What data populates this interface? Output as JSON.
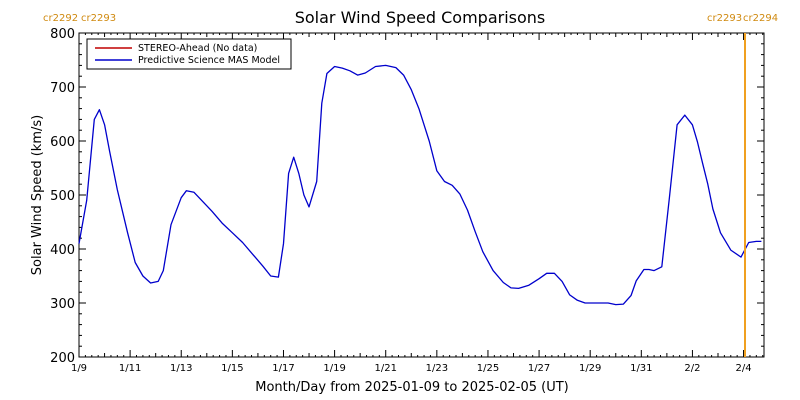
{
  "chart_data": {
    "type": "line",
    "title": "Solar Wind Speed Comparisons",
    "xlabel": "Month/Day from 2025-01-09 to 2025-02-05 (UT)",
    "ylabel": "Solar Wind Speed (km/s)",
    "ylim": [
      200,
      800
    ],
    "xlim_days": [
      0,
      26.8
    ],
    "y_ticks": [
      "200",
      "300",
      "400",
      "500",
      "600",
      "700",
      "800"
    ],
    "x_ticks": [
      {
        "day": 0,
        "label": "1/9"
      },
      {
        "day": 2,
        "label": "1/11"
      },
      {
        "day": 4,
        "label": "1/13"
      },
      {
        "day": 6,
        "label": "1/15"
      },
      {
        "day": 8,
        "label": "1/17"
      },
      {
        "day": 10,
        "label": "1/19"
      },
      {
        "day": 12,
        "label": "1/21"
      },
      {
        "day": 14,
        "label": "1/23"
      },
      {
        "day": 16,
        "label": "1/25"
      },
      {
        "day": 18,
        "label": "1/27"
      },
      {
        "day": 20,
        "label": "1/29"
      },
      {
        "day": 22,
        "label": "1/31"
      },
      {
        "day": 24,
        "label": "2/2"
      },
      {
        "day": 26,
        "label": "2/4"
      }
    ],
    "legend_position": "top-left",
    "series": [
      {
        "name": "STEREO-Ahead (No data)",
        "color": "#c00000",
        "values": []
      },
      {
        "name": "Predictive Science MAS Model",
        "color": "#0000cc",
        "x_days": [
          0,
          0.3,
          0.6,
          0.8,
          1.0,
          1.2,
          1.5,
          1.9,
          2.2,
          2.5,
          2.8,
          3.1,
          3.3,
          3.6,
          4.0,
          4.2,
          4.5,
          4.8,
          5.2,
          5.6,
          6.0,
          6.4,
          6.8,
          7.2,
          7.5,
          7.8,
          8.0,
          8.2,
          8.4,
          8.6,
          8.8,
          9.0,
          9.3,
          9.5,
          9.7,
          10.0,
          10.3,
          10.6,
          10.9,
          11.2,
          11.6,
          12.0,
          12.4,
          12.7,
          13.0,
          13.3,
          13.7,
          14.0,
          14.3,
          14.6,
          14.9,
          15.2,
          15.5,
          15.8,
          16.2,
          16.6,
          16.9,
          17.2,
          17.6,
          18.0,
          18.3,
          18.6,
          18.9,
          19.2,
          19.5,
          19.8,
          20.1,
          20.4,
          20.7,
          21.0,
          21.3,
          21.6,
          21.8,
          22.1,
          22.3,
          22.5,
          22.8,
          23.1,
          23.4,
          23.7,
          24.0,
          24.2,
          24.4,
          24.6,
          24.8,
          25.1,
          25.5,
          25.9,
          26.2,
          26.5,
          26.7
        ],
        "values": [
          410,
          490,
          640,
          658,
          630,
          580,
          510,
          430,
          375,
          350,
          337,
          340,
          360,
          445,
          495,
          508,
          505,
          490,
          470,
          448,
          430,
          412,
          390,
          368,
          350,
          348,
          410,
          540,
          570,
          540,
          500,
          478,
          525,
          670,
          725,
          738,
          735,
          730,
          722,
          726,
          738,
          740,
          736,
          722,
          695,
          660,
          600,
          545,
          525,
          518,
          502,
          472,
          432,
          395,
          360,
          338,
          328,
          327,
          333,
          345,
          355,
          355,
          340,
          315,
          305,
          300,
          300,
          300,
          300,
          297,
          298,
          314,
          341,
          362,
          362,
          360,
          367,
          495,
          630,
          648,
          630,
          598,
          558,
          520,
          474,
          430,
          398,
          385,
          412,
          414,
          414
        ]
      }
    ],
    "rotation_markers": [
      {
        "label": "cr2292",
        "position": "top-left"
      },
      {
        "label": "cr2293",
        "position": "top-left"
      },
      {
        "label": "cr2293",
        "position": "top-right"
      },
      {
        "label": "cr2294",
        "position": "top-right"
      }
    ]
  }
}
